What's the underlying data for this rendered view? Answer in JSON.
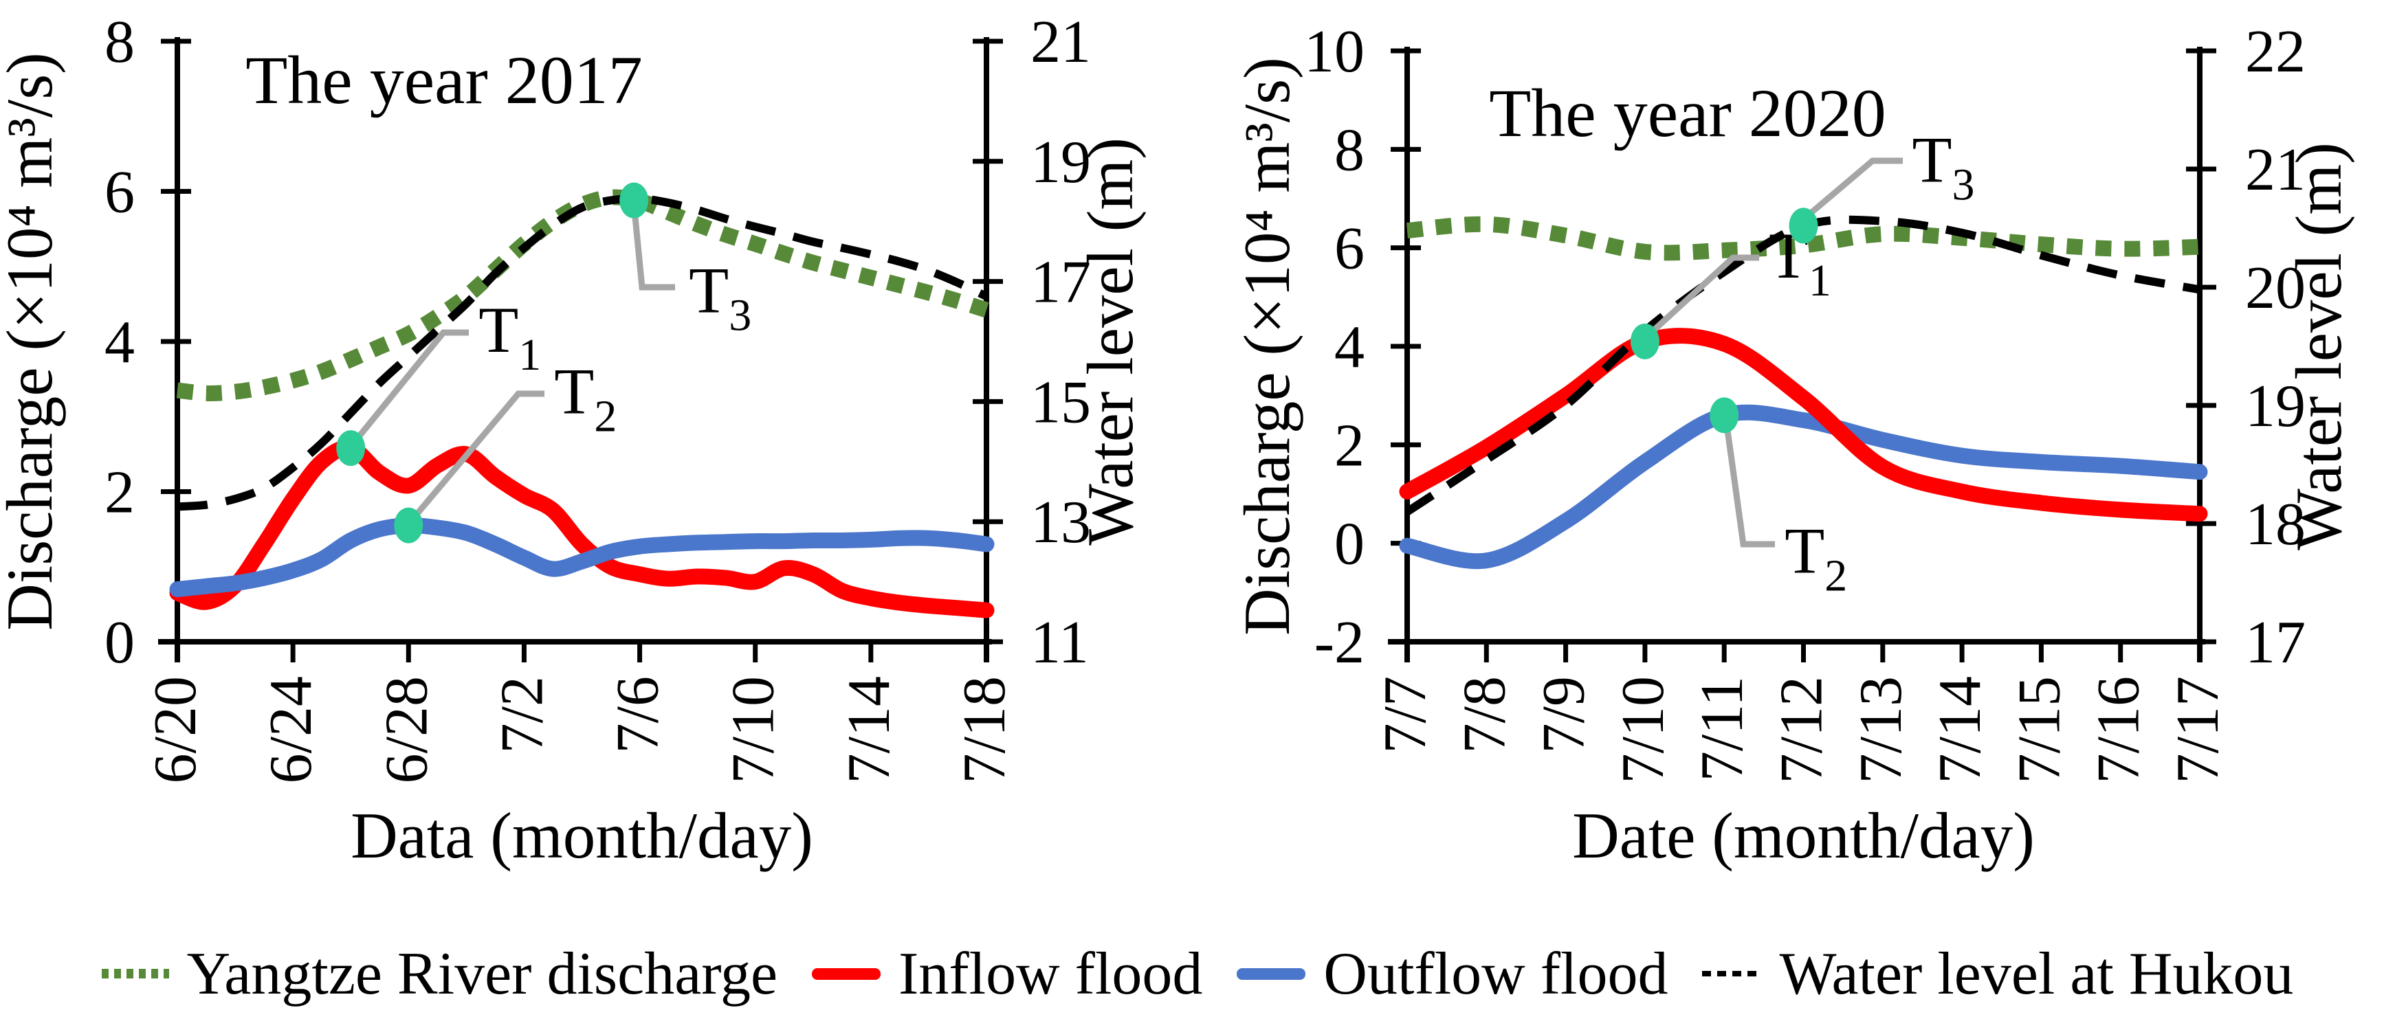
{
  "figure": {
    "background": "#ffffff"
  },
  "colors": {
    "yangtze_green": "#578a38",
    "inflow_red": "#fe0000",
    "outflow_blue": "#4a76cb",
    "water_level_black": "#000000",
    "marker_teal": "#2ecc96",
    "leader_gray": "#a6a6a6"
  },
  "legend": {
    "items": [
      {
        "label": "Yangtze River discharge",
        "swatch": "green-dotted"
      },
      {
        "label": "Inflow flood",
        "swatch": "red-solid"
      },
      {
        "label": "Outflow flood",
        "swatch": "blue-solid"
      },
      {
        "label": "Water level at Hukou",
        "swatch": "black-dashed"
      }
    ]
  },
  "chart_data": [
    {
      "type": "line",
      "title": "The year 2017",
      "xlabel": "Data (month/day)",
      "ylabel_left": "Discharge (×10⁴ m³/s)",
      "ylabel_right": "Water level (m)",
      "grid": false,
      "legend_position": "bottom",
      "x_dates": [
        "6/20",
        "6/21",
        "6/22",
        "6/23",
        "6/24",
        "6/25",
        "6/26",
        "6/27",
        "6/28",
        "6/29",
        "6/30",
        "7/1",
        "7/2",
        "7/3",
        "7/4",
        "7/5",
        "7/6",
        "7/7",
        "7/8",
        "7/9",
        "7/10",
        "7/11",
        "7/12",
        "7/13",
        "7/14",
        "7/15",
        "7/16",
        "7/17",
        "7/18"
      ],
      "x_tick_labels": [
        "6/20",
        "6/24",
        "6/28",
        "7/2",
        "7/6",
        "7/10",
        "7/14",
        "7/18"
      ],
      "x_tick_days": [
        0,
        4,
        8,
        12,
        16,
        20,
        24,
        28
      ],
      "y_left": {
        "min": 0,
        "max": 8,
        "ticks": [
          0,
          2,
          4,
          6,
          8
        ]
      },
      "y_right": {
        "min": 11,
        "max": 21,
        "ticks": [
          11,
          13,
          15,
          17,
          19,
          21
        ]
      },
      "series": [
        {
          "name": "Yangtze River discharge",
          "axis": "left",
          "style": "dotted-green",
          "values": [
            3.35,
            3.31,
            3.33,
            3.39,
            3.48,
            3.6,
            3.76,
            3.93,
            4.1,
            4.33,
            4.6,
            4.95,
            5.3,
            5.6,
            5.82,
            5.92,
            5.87,
            5.72,
            5.56,
            5.42,
            5.3,
            5.17,
            5.05,
            4.95,
            4.85,
            4.75,
            4.65,
            4.54,
            4.42
          ]
        },
        {
          "name": "Inflow flood",
          "axis": "left",
          "style": "solid-red",
          "values": [
            0.65,
            0.53,
            0.75,
            1.3,
            1.9,
            2.4,
            2.58,
            2.25,
            2.08,
            2.35,
            2.5,
            2.2,
            1.95,
            1.75,
            1.3,
            1.0,
            0.9,
            0.84,
            0.87,
            0.85,
            0.8,
            0.98,
            0.9,
            0.68,
            0.58,
            0.52,
            0.48,
            0.45,
            0.42
          ]
        },
        {
          "name": "Outflow flood",
          "axis": "left",
          "style": "solid-blue",
          "values": [
            0.7,
            0.74,
            0.78,
            0.85,
            0.95,
            1.1,
            1.35,
            1.5,
            1.55,
            1.52,
            1.45,
            1.3,
            1.12,
            0.97,
            1.07,
            1.2,
            1.27,
            1.3,
            1.32,
            1.33,
            1.34,
            1.34,
            1.35,
            1.35,
            1.36,
            1.38,
            1.38,
            1.35,
            1.3
          ]
        },
        {
          "name": "Water level at Hukou",
          "axis": "right",
          "style": "dashed-black",
          "values": [
            13.25,
            13.28,
            13.38,
            13.56,
            13.9,
            14.31,
            14.81,
            15.31,
            15.75,
            16.19,
            16.63,
            17.13,
            17.56,
            17.94,
            18.23,
            18.35,
            18.38,
            18.31,
            18.19,
            18.04,
            17.91,
            17.79,
            17.66,
            17.56,
            17.45,
            17.33,
            17.18,
            16.98,
            16.75
          ]
        }
      ],
      "markers": [
        {
          "label": "T",
          "sub": "1",
          "date": "6/26",
          "day_offset": 6,
          "value": 2.58,
          "value_axis": "left"
        },
        {
          "label": "T",
          "sub": "2",
          "date": "6/28",
          "day_offset": 8,
          "value": 1.55,
          "value_axis": "left"
        },
        {
          "label": "T",
          "sub": "3",
          "date": "7/6",
          "day_offset": 15.8,
          "value": 5.88,
          "value_axis": "left"
        }
      ]
    },
    {
      "type": "line",
      "title": "The year 2020",
      "xlabel": "Date (month/day)",
      "ylabel_left": "Discharge (×10⁴ m³/s)",
      "ylabel_right": "Water level (m)",
      "grid": false,
      "legend_position": "bottom",
      "x_dates": [
        "7/7",
        "7/8",
        "7/9",
        "7/10",
        "7/11",
        "7/12",
        "7/13",
        "7/14",
        "7/15",
        "7/16",
        "7/17"
      ],
      "x_tick_labels": [
        "7/7",
        "7/8",
        "7/9",
        "7/10",
        "7/11",
        "7/12",
        "7/13",
        "7/14",
        "7/15",
        "7/16",
        "7/17"
      ],
      "x_tick_days": [
        0,
        1,
        2,
        3,
        4,
        5,
        6,
        7,
        8,
        9,
        10
      ],
      "y_left": {
        "min": -2,
        "max": 10,
        "ticks": [
          -2,
          0,
          2,
          4,
          6,
          8,
          10
        ]
      },
      "y_right": {
        "min": 17,
        "max": 22,
        "ticks": [
          17,
          18,
          19,
          20,
          21,
          22
        ]
      },
      "series": [
        {
          "name": "Yangtze River discharge",
          "axis": "left",
          "style": "dotted-green",
          "values": [
            6.35,
            6.48,
            6.25,
            5.92,
            5.95,
            6.05,
            6.28,
            6.2,
            6.07,
            5.98,
            6.02
          ]
        },
        {
          "name": "Outflow flood",
          "axis": "left",
          "style": "solid-blue",
          "values": [
            -0.05,
            -0.35,
            0.45,
            1.65,
            2.6,
            2.5,
            2.1,
            1.78,
            1.65,
            1.57,
            1.45
          ]
        },
        {
          "name": "Inflow flood",
          "axis": "left",
          "style": "solid-red",
          "values": [
            1.05,
            1.95,
            3.0,
            4.1,
            4.05,
            2.95,
            1.55,
            1.05,
            0.82,
            0.68,
            0.6
          ]
        },
        {
          "name": "Water level at Hukou",
          "axis": "right",
          "style": "dashed-black",
          "values": [
            18.1,
            18.54,
            19.0,
            19.63,
            20.13,
            20.52,
            20.56,
            20.46,
            20.27,
            20.1,
            19.98
          ]
        }
      ],
      "markers": [
        {
          "label": "T",
          "sub": "1",
          "date": "7/10",
          "day_offset": 3,
          "value": 4.1,
          "value_axis": "left"
        },
        {
          "label": "T",
          "sub": "2",
          "date": "7/11",
          "day_offset": 4,
          "value": 2.6,
          "value_axis": "left"
        },
        {
          "label": "T",
          "sub": "3",
          "date": "7/12",
          "day_offset": 5,
          "value": 6.45,
          "value_axis": "left"
        }
      ]
    }
  ]
}
